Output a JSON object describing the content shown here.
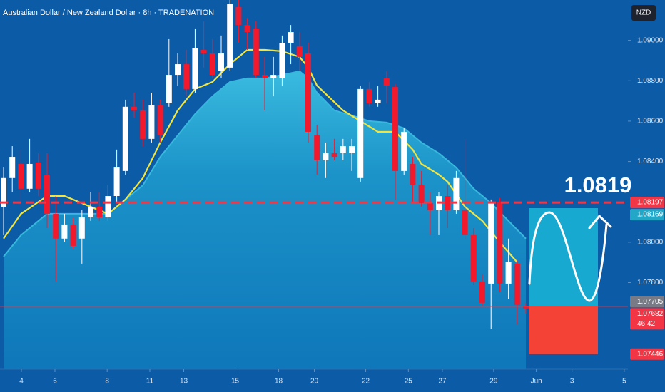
{
  "chart_data": {
    "type": "candlestick",
    "title": "Australian Dollar / New Zealand Dollar · 8h · TRADENATION",
    "currency": "NZD",
    "xlim": [
      -0.41,
      71.72
    ],
    "ylim": [
      1.07371,
      1.092
    ],
    "grid": false,
    "xticks": [
      {
        "value": 2.05,
        "label": "4"
      },
      {
        "value": 5.9,
        "label": "6"
      },
      {
        "value": 11.9,
        "label": "8"
      },
      {
        "value": 16.8,
        "label": "11"
      },
      {
        "value": 20.7,
        "label": "13"
      },
      {
        "value": 26.6,
        "label": "15"
      },
      {
        "value": 31.6,
        "label": "18"
      },
      {
        "value": 35.7,
        "label": "20"
      },
      {
        "value": 41.6,
        "label": "22"
      },
      {
        "value": 46.5,
        "label": "25"
      },
      {
        "value": 50.4,
        "label": "27"
      },
      {
        "value": 56.3,
        "label": "29"
      },
      {
        "value": 61.2,
        "label": "Jun"
      },
      {
        "value": 65.3,
        "label": "3"
      },
      {
        "value": 71.3,
        "label": "5"
      }
    ],
    "yticks": [
      {
        "value": 1.09,
        "label": "1.09000"
      },
      {
        "value": 1.088,
        "label": "1.08800"
      },
      {
        "value": 1.086,
        "label": "1.08600"
      },
      {
        "value": 1.084,
        "label": "1.08400"
      },
      {
        "value": 1.08,
        "label": "1.08000"
      },
      {
        "value": 1.078,
        "label": "1.07800"
      }
    ],
    "up_color": "#ffffff",
    "down_color": "#f2192d",
    "candles": {
      "open": [
        1.08176,
        1.08318,
        1.08388,
        1.08265,
        1.08395,
        1.08335,
        1.08141,
        1.08018,
        1.08088,
        1.08018,
        1.08123,
        1.08176,
        1.08123,
        1.08229,
        1.08353,
        1.08671,
        1.08653,
        1.08512,
        1.08678,
        1.08688,
        1.08829,
        1.08882,
        1.08759,
        1.08953,
        1.08935,
        1.08847,
        1.08865,
        1.09165,
        1.09076,
        1.09059,
        1.08829,
        1.08812,
        1.08812,
        1.08988,
        1.08971,
        1.08935,
        1.08529,
        1.08406,
        1.08441,
        1.08441,
        1.08441,
        1.08318,
        1.08759,
        1.08688,
        1.08812,
        1.08769,
        1.08353,
        1.08388,
        1.08282,
        1.08194,
        1.08159,
        1.08229,
        1.08159,
        1.08159,
        1.08035,
        1.07806,
        1.07795,
        1.08201,
        1.07795,
        1.07894,
        1.07682
      ],
      "high": [
        1.0837,
        1.08476,
        1.08459,
        1.08512,
        1.08441,
        1.08441,
        1.08229,
        1.08141,
        1.08123,
        1.08159,
        1.08247,
        1.08247,
        1.08282,
        1.08459,
        1.08706,
        1.08741,
        1.08706,
        1.08741,
        1.08706,
        1.09006,
        1.08935,
        1.08953,
        1.09059,
        1.09094,
        1.09006,
        1.09024,
        1.092,
        1.092,
        1.09112,
        1.09094,
        1.08918,
        1.08918,
        1.09024,
        1.09076,
        1.09041,
        1.08988,
        1.08582,
        1.08494,
        1.08512,
        1.08512,
        1.08512,
        1.08776,
        1.08794,
        1.08776,
        1.08847,
        1.08783,
        1.08565,
        1.08423,
        1.08353,
        1.08247,
        1.08247,
        1.08282,
        1.08353,
        1.08512,
        1.0807,
        1.07841,
        1.08212,
        1.08219,
        1.08018,
        1.07912,
        1.077
      ],
      "low": [
        1.08035,
        1.08247,
        1.08176,
        1.08247,
        1.08229,
        1.0807,
        1.07806,
        1.08,
        1.07965,
        1.07894,
        1.08106,
        1.08106,
        1.08106,
        1.08194,
        1.08335,
        1.08618,
        1.08476,
        1.08494,
        1.08494,
        1.08671,
        1.08776,
        1.08723,
        1.08741,
        1.08865,
        1.08812,
        1.08812,
        1.08847,
        1.08988,
        1.08953,
        1.08812,
        1.08653,
        1.08723,
        1.08776,
        1.08882,
        1.08847,
        1.08494,
        1.08335,
        1.08318,
        1.08406,
        1.08406,
        1.08353,
        1.083,
        1.08671,
        1.08671,
        1.08688,
        1.08212,
        1.08335,
        1.08194,
        1.08176,
        1.08035,
        1.08035,
        1.0807,
        1.08141,
        1.08018,
        1.07788,
        1.07682,
        1.07569,
        1.07753,
        1.07717,
        1.07594,
        1.07647
      ],
      "close": [
        1.08318,
        1.08423,
        1.08265,
        1.08388,
        1.08265,
        1.08141,
        1.08018,
        1.08088,
        1.07982,
        1.08123,
        1.08176,
        1.08123,
        1.08229,
        1.0837,
        1.08671,
        1.08653,
        1.08512,
        1.08678,
        1.08529,
        1.08829,
        1.08882,
        1.08759,
        1.0896,
        1.08935,
        1.08829,
        1.08935,
        1.09182,
        1.09076,
        1.09041,
        1.08829,
        1.08812,
        1.08829,
        1.08988,
        1.09041,
        1.08918,
        1.08547,
        1.08406,
        1.08441,
        1.08423,
        1.08476,
        1.08476,
        1.08759,
        1.08688,
        1.08706,
        1.08776,
        1.08353,
        1.08547,
        1.08282,
        1.08194,
        1.08159,
        1.08229,
        1.08159,
        1.08318,
        1.08035,
        1.07806,
        1.077,
        1.08194,
        1.07795,
        1.07901,
        1.07689,
        1.07672
      ]
    },
    "indicators": [
      {
        "kind": "area",
        "color": "#38b8dc",
        "x": [
          0,
          2,
          5,
          10,
          12,
          14,
          16,
          18,
          20,
          22,
          24,
          26,
          28,
          30,
          32,
          34,
          35,
          36,
          38,
          40,
          42,
          44,
          46,
          48,
          50,
          52,
          54,
          56,
          58,
          60
        ],
        "values": [
          1.07929,
          1.08035,
          1.08141,
          1.08141,
          1.08141,
          1.08212,
          1.08282,
          1.08423,
          1.08529,
          1.08635,
          1.08723,
          1.08794,
          1.08812,
          1.08812,
          1.08829,
          1.08847,
          1.08812,
          1.08741,
          1.08653,
          1.08628,
          1.086,
          1.08593,
          1.08565,
          1.08494,
          1.08441,
          1.0837,
          1.08265,
          1.08194,
          1.08106,
          1.08018
        ]
      },
      {
        "kind": "line",
        "color": "#f3e53c",
        "x": [
          0,
          2,
          5,
          7,
          10,
          12,
          14,
          16,
          18,
          20,
          22,
          24,
          26,
          28,
          30,
          32,
          34,
          35,
          36,
          39,
          41,
          43,
          45,
          47,
          48,
          50,
          51,
          53,
          55,
          57,
          59
        ],
        "values": [
          1.08018,
          1.08141,
          1.08229,
          1.08229,
          1.08176,
          1.08141,
          1.08212,
          1.08318,
          1.08494,
          1.08653,
          1.08759,
          1.08794,
          1.08882,
          1.08953,
          1.08953,
          1.08946,
          1.08918,
          1.08865,
          1.08776,
          1.08653,
          1.086,
          1.08547,
          1.08547,
          1.08459,
          1.08388,
          1.08335,
          1.083,
          1.08176,
          1.08106,
          1.08,
          1.07901
        ]
      }
    ],
    "markers": [
      {
        "value": 1.08197,
        "color": "#f23645"
      },
      {
        "value": 1.08169,
        "color": "#22a7c9"
      },
      {
        "value": 1.07705,
        "color": "#787b86"
      },
      {
        "value": 1.07682,
        "color": "#f23645",
        "countdown": "46:42"
      },
      {
        "value": 1.07446,
        "color": "#f23645"
      }
    ],
    "annotation": 1.0819
  }
}
